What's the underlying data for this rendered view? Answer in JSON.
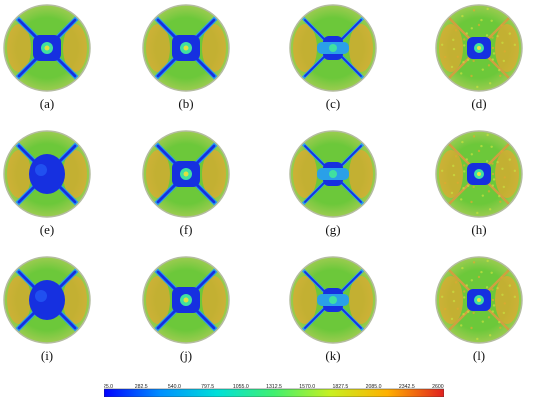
{
  "panels": [
    {
      "label": "(a)",
      "variant": "spider"
    },
    {
      "label": "(b)",
      "variant": "spider"
    },
    {
      "label": "(c)",
      "variant": "cross"
    },
    {
      "label": "(d)",
      "variant": "speckled"
    },
    {
      "label": "(e)",
      "variant": "blob"
    },
    {
      "label": "(f)",
      "variant": "spider"
    },
    {
      "label": "(g)",
      "variant": "cross"
    },
    {
      "label": "(h)",
      "variant": "speckled"
    },
    {
      "label": "(i)",
      "variant": "blob"
    },
    {
      "label": "(j)",
      "variant": "spider"
    },
    {
      "label": "(k)",
      "variant": "cross"
    },
    {
      "label": "(l)",
      "variant": "speckled"
    }
  ],
  "colorbar": {
    "ticks": [
      "25.0",
      "282.5",
      "540.0",
      "797.5",
      "1055.0",
      "1312.5",
      "1570.0",
      "1827.5",
      "2085.0",
      "2342.5",
      "2600.0"
    ],
    "colors": [
      "#0000ff",
      "#0090ff",
      "#00e0d8",
      "#40f070",
      "#c8f020",
      "#ffb000",
      "#e02020"
    ]
  },
  "field_colors": {
    "base": "#6cc83a",
    "warm": "#e0a830",
    "deep": "#1630e0",
    "mid": "#2aa0e8",
    "rim": "#b4bca0"
  }
}
